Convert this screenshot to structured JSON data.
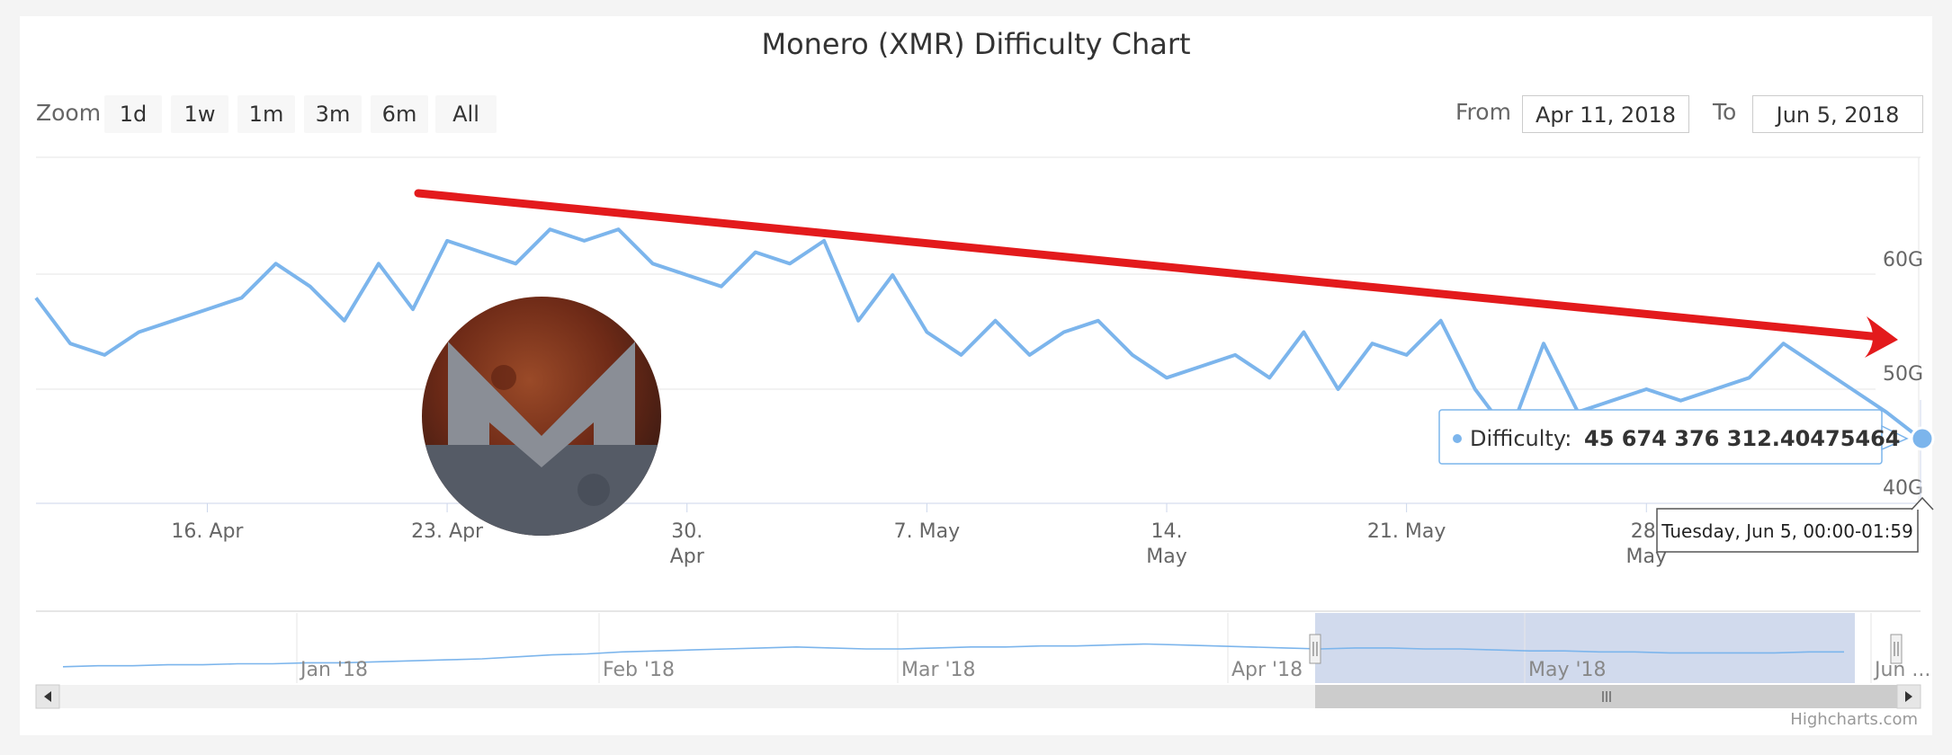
{
  "chart_data": {
    "type": "line",
    "title": "Monero (XMR) Difficulty Chart",
    "series": [
      {
        "name": "Difficulty"
      }
    ],
    "y_ticks": [
      "40G",
      "50G",
      "60G"
    ],
    "ylim": [
      40,
      70
    ],
    "x_ticks": [
      {
        "date": "2018-04-16",
        "line1": "16. Apr",
        "line2": ""
      },
      {
        "date": "2018-04-23",
        "line1": "23. Apr",
        "line2": ""
      },
      {
        "date": "2018-04-30",
        "line1": "30.",
        "line2": "Apr"
      },
      {
        "date": "2018-05-07",
        "line1": "7. May",
        "line2": ""
      },
      {
        "date": "2018-05-14",
        "line1": "14.",
        "line2": "May"
      },
      {
        "date": "2018-05-21",
        "line1": "21. May",
        "line2": ""
      },
      {
        "date": "2018-05-28",
        "line1": "28.",
        "line2": "May"
      }
    ],
    "x": [
      "2018-04-11",
      "2018-04-12",
      "2018-04-13",
      "2018-04-14",
      "2018-04-15",
      "2018-04-16",
      "2018-04-17",
      "2018-04-18",
      "2018-04-19",
      "2018-04-20",
      "2018-04-21",
      "2018-04-22",
      "2018-04-23",
      "2018-04-24",
      "2018-04-25",
      "2018-04-26",
      "2018-04-27",
      "2018-04-28",
      "2018-04-29",
      "2018-04-30",
      "2018-05-01",
      "2018-05-02",
      "2018-05-03",
      "2018-05-04",
      "2018-05-05",
      "2018-05-06",
      "2018-05-07",
      "2018-05-08",
      "2018-05-09",
      "2018-05-10",
      "2018-05-11",
      "2018-05-12",
      "2018-05-13",
      "2018-05-14",
      "2018-05-15",
      "2018-05-16",
      "2018-05-17",
      "2018-05-18",
      "2018-05-19",
      "2018-05-20",
      "2018-05-21",
      "2018-05-22",
      "2018-05-23",
      "2018-05-24",
      "2018-05-25",
      "2018-05-26",
      "2018-05-27",
      "2018-05-28",
      "2018-05-29",
      "2018-05-30",
      "2018-05-31",
      "2018-06-01",
      "2018-06-02",
      "2018-06-03",
      "2018-06-04",
      "2018-06-05"
    ],
    "values": [
      58,
      54,
      53,
      55,
      56,
      57,
      58,
      61,
      59,
      56,
      61,
      57,
      63,
      62,
      61,
      64,
      63,
      64,
      61,
      60,
      59,
      62,
      61,
      63,
      56,
      60,
      55,
      53,
      56,
      53,
      55,
      56,
      53,
      51,
      52,
      53,
      51,
      55,
      50,
      54,
      53,
      56,
      50,
      46,
      54,
      48,
      49,
      50,
      49,
      50,
      51,
      54,
      52,
      50,
      48,
      45.67
    ]
  },
  "zoom": {
    "label": "Zoom",
    "buttons": [
      "1d",
      "1w",
      "1m",
      "3m",
      "6m",
      "All"
    ]
  },
  "range": {
    "from_label": "From",
    "from_value": "Apr 11, 2018",
    "to_label": "To",
    "to_value": "Jun 5, 2018"
  },
  "tooltip": {
    "series_label": "Difficulty:",
    "value": "45 674 376 312.40475464",
    "date": "Tuesday, Jun 5, 00:00-01:59"
  },
  "navigator": {
    "labels": [
      "Jan '18",
      "Feb '18",
      "Mar '18",
      "Apr '18",
      "May '18",
      "Jun ..."
    ],
    "values": [
      12,
      13,
      13,
      14,
      14,
      15,
      15,
      16,
      16,
      17,
      18,
      19,
      20,
      22,
      24,
      25,
      27,
      28,
      29,
      30,
      31,
      32,
      31,
      30,
      30,
      31,
      32,
      32,
      33,
      33,
      34,
      35,
      34,
      33,
      32,
      31,
      30,
      31,
      31,
      30,
      30,
      29,
      28,
      28,
      27,
      27,
      26,
      26,
      26,
      26,
      27,
      27
    ]
  },
  "credit": "Highcharts.com",
  "colors": {
    "line": "#7cb5ec",
    "trend": "#e31a1c",
    "selection": "#ccd6eb"
  },
  "logo": "monero-moon-icon"
}
